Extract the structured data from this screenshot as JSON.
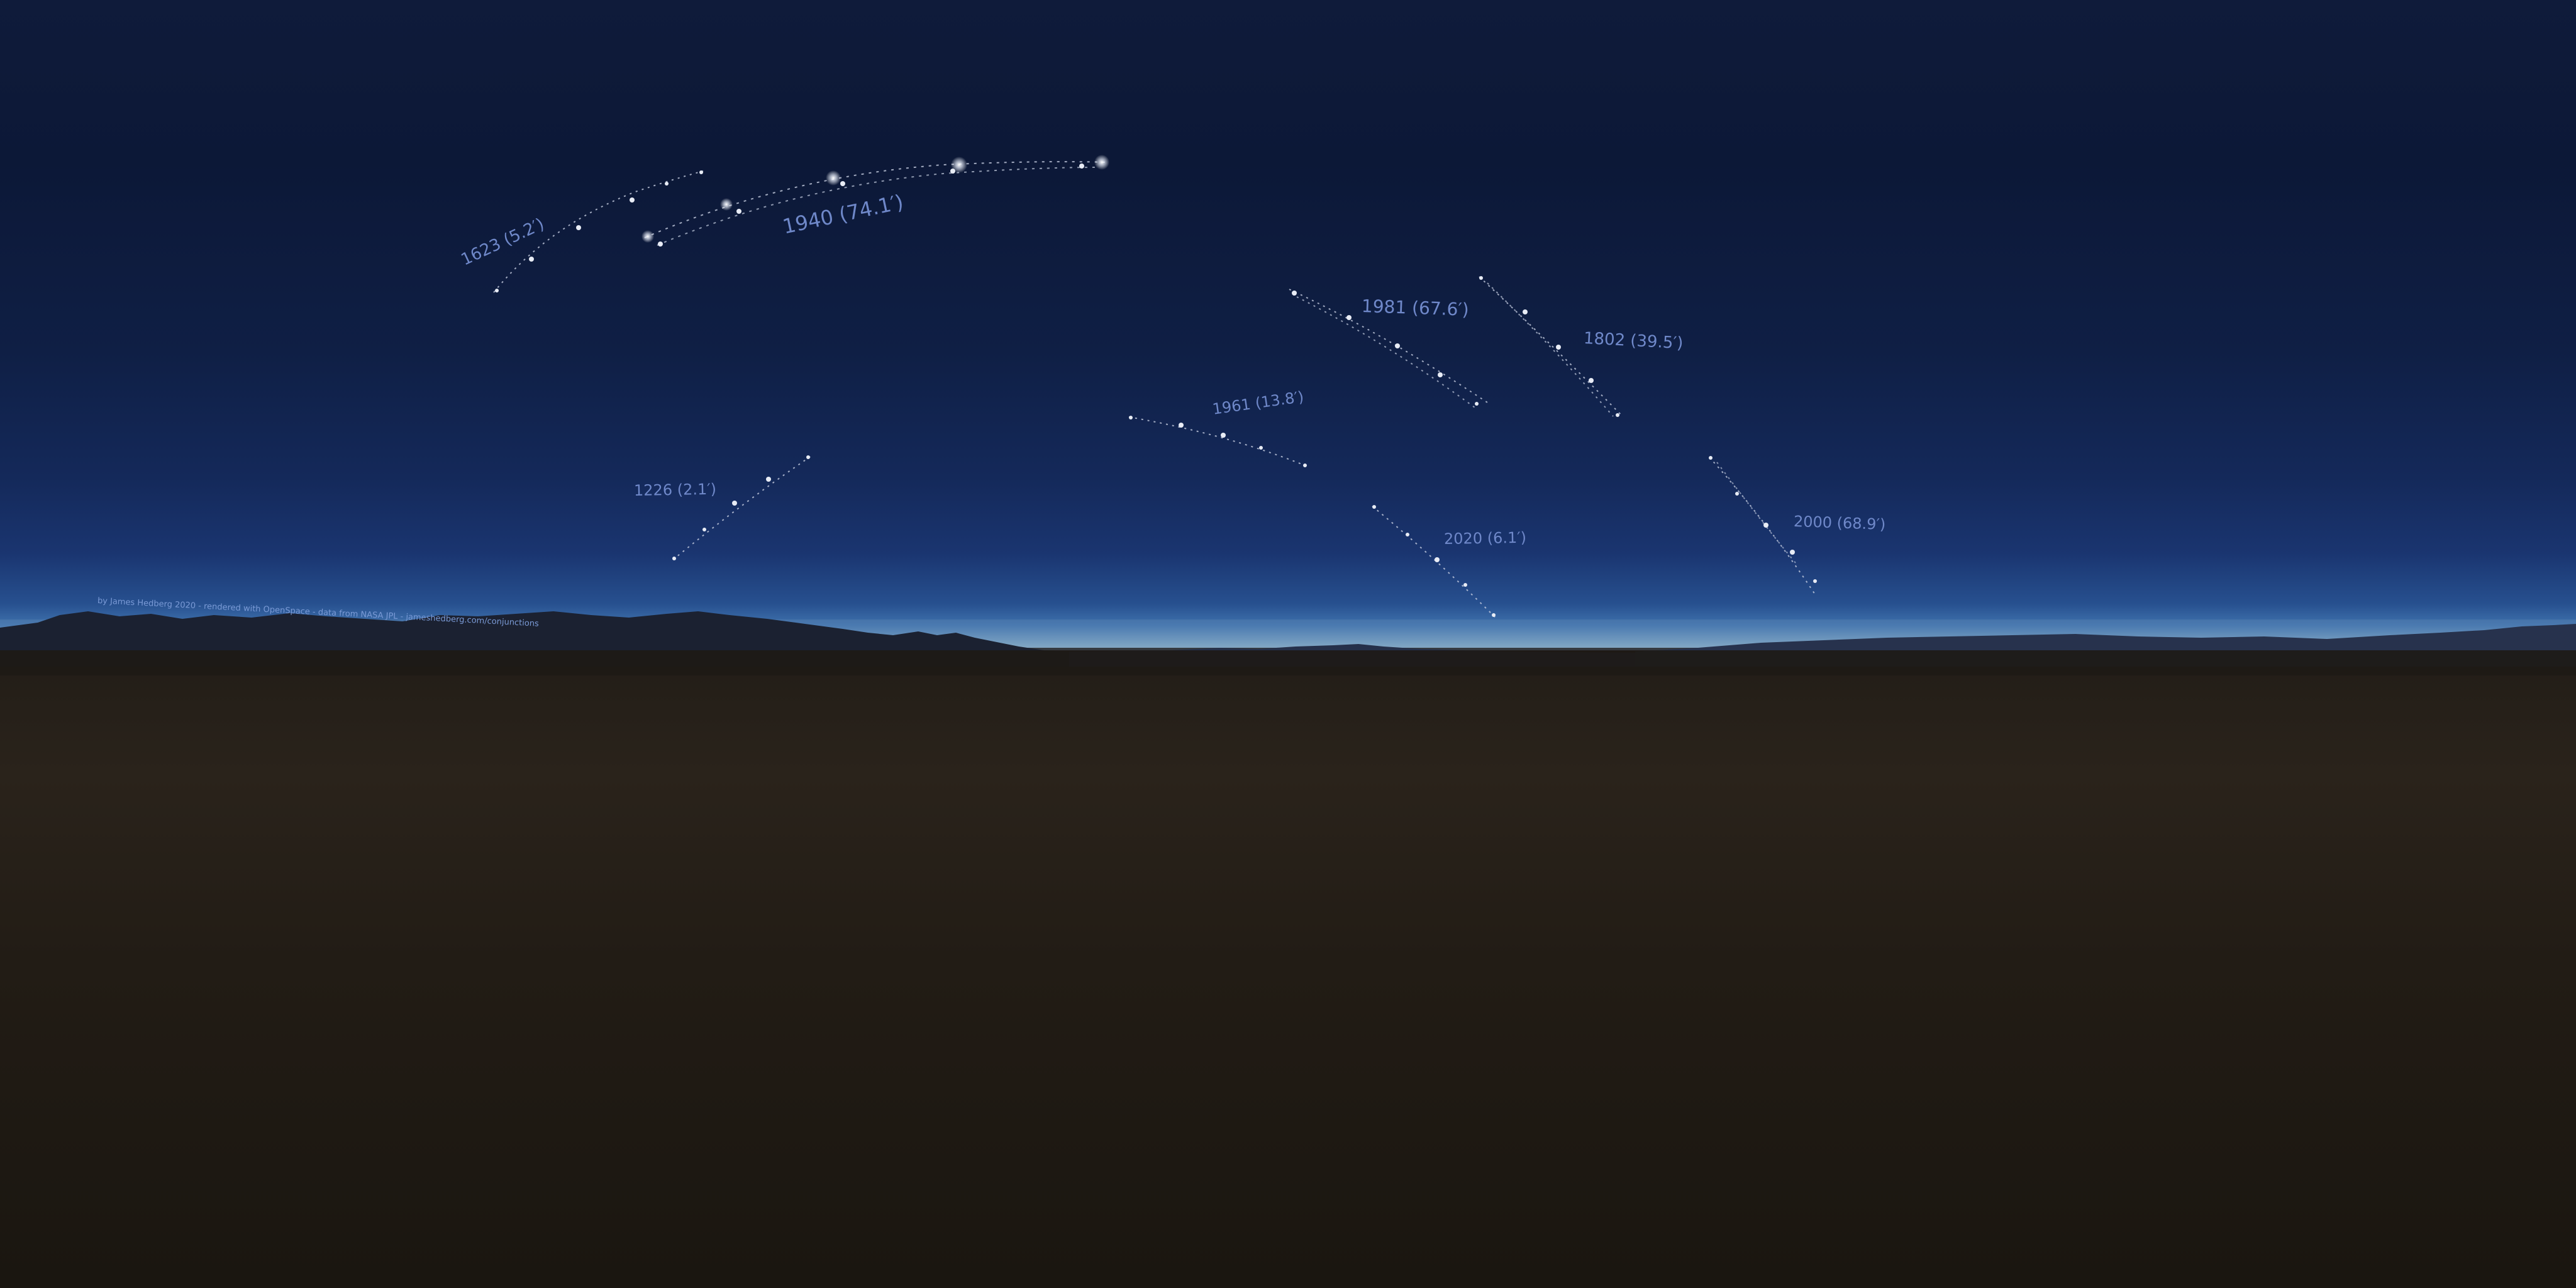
{
  "scene": {
    "type": "equirectangular-sky-panorama",
    "colors": {
      "sky_top": "#0f1b3a",
      "horizon_glow": "#7ea6c4",
      "mountains": "#1b2030",
      "ground": "#221d17",
      "label": "#6f88c9",
      "track_dot": "#d8deea"
    }
  },
  "credit": "by James Hedberg 2020 - rendered with OpenSpace - data from NASA JPL - jameshedberg.com/conjunctions",
  "conjunctions": [
    {
      "id": "c1623",
      "label": "1623 (5.2′)"
    },
    {
      "id": "c1940",
      "label": "1940 (74.1′)"
    },
    {
      "id": "c1981",
      "label": "1981 (67.6′)"
    },
    {
      "id": "c1802",
      "label": "1802 (39.5′)"
    },
    {
      "id": "c1961",
      "label": "1961 (13.8′)"
    },
    {
      "id": "c1226",
      "label": "1226  (2.1′)"
    },
    {
      "id": "c2020",
      "label": "2020 (6.1′)"
    },
    {
      "id": "c2000",
      "label": "2000 (68.9′)"
    }
  ]
}
